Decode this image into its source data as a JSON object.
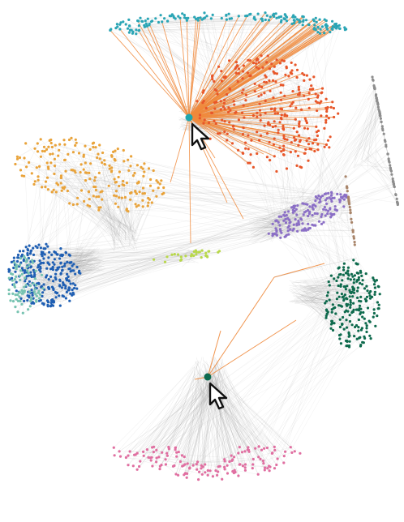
{
  "colors": {
    "edge_gray": "#9a9a9a",
    "highlight_edge": "#f08a3c",
    "focus_node_fill_teal": "#1fa6ad",
    "focus_node_fill_green": "#0f6b4f",
    "focus_node_stroke": "#123c3c",
    "cursor_fill": "#ffffff",
    "cursor_stroke": "#111111"
  },
  "network": {
    "clusters": [
      {
        "name": "teal-top",
        "color": "#2aa5b5"
      },
      {
        "name": "orange-top",
        "color": "#e8572a"
      },
      {
        "name": "yellow-left",
        "color": "#e9a33a"
      },
      {
        "name": "gray-right",
        "color": "#8e8e8e"
      },
      {
        "name": "purple-middle",
        "color": "#8b6fc6"
      },
      {
        "name": "brown-right",
        "color": "#a9856a"
      },
      {
        "name": "blue-left",
        "color": "#1f5fb3"
      },
      {
        "name": "mint-left",
        "color": "#77c3b1"
      },
      {
        "name": "lime-center",
        "color": "#b8d84a"
      },
      {
        "name": "dark-green-right",
        "color": "#0e6a4d"
      },
      {
        "name": "pink-bottom",
        "color": "#e06fa1"
      }
    ],
    "focus_nodes": [
      {
        "name": "selected-node-top",
        "color_key": "focus_node_fill_teal"
      },
      {
        "name": "selected-node-bottom",
        "color_key": "focus_node_fill_green"
      }
    ],
    "cursor_icons": [
      "cursor-arrow-icon",
      "cursor-arrow-icon"
    ]
  }
}
